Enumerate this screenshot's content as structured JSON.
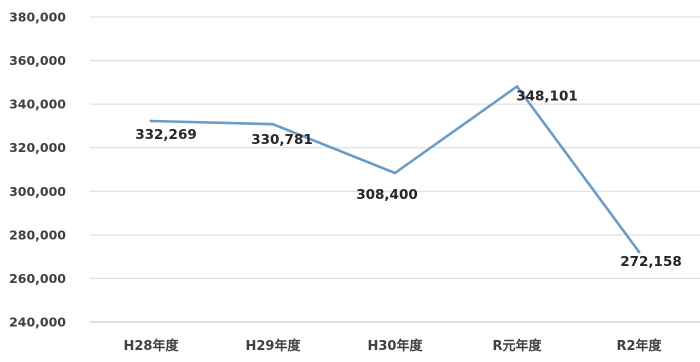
{
  "chart_data": {
    "type": "line",
    "categories": [
      "H28年度",
      "H29年度",
      "H30年度",
      "R元年度",
      "R2年度"
    ],
    "series": [
      {
        "values": [
          332269,
          330781,
          308400,
          348101,
          272158
        ],
        "labels": [
          "332,269",
          "330,781",
          "308,400",
          "348,101",
          "272,158"
        ],
        "color": "#6b9cc8"
      }
    ],
    "ylim": [
      240000,
      380000
    ],
    "yticks": [
      240000,
      260000,
      280000,
      300000,
      320000,
      340000,
      360000,
      380000
    ],
    "ytick_labels": [
      "240,000",
      "260,000",
      "280,000",
      "300,000",
      "320,000",
      "340,000",
      "360,000",
      "380,000"
    ],
    "grid": true,
    "legend": "none"
  }
}
